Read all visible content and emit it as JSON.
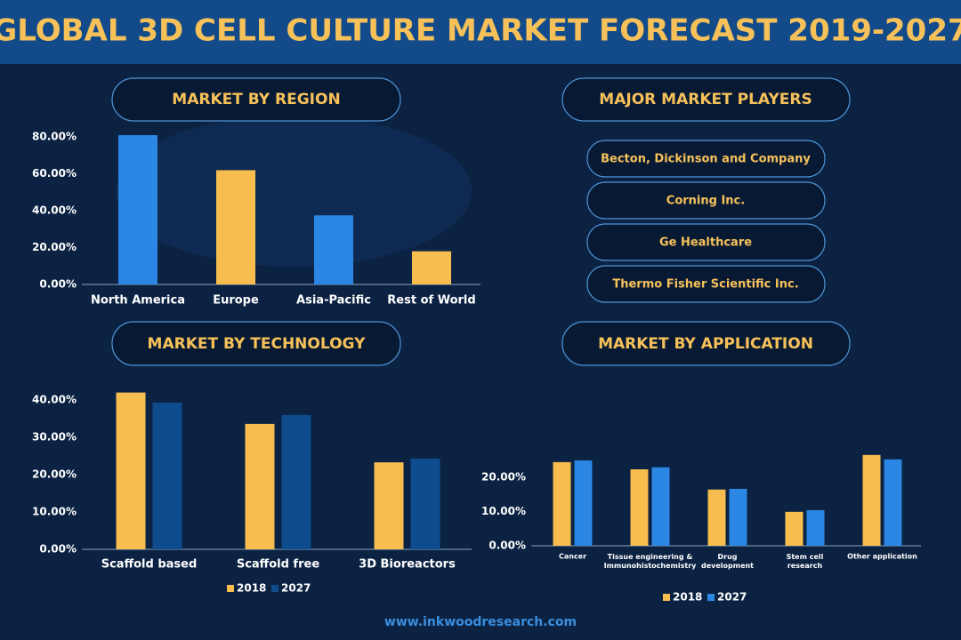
{
  "title": "GLOBAL 3D CELL CULTURE MARKET FORECAST 2019-2027",
  "chart_data": [
    {
      "type": "bar",
      "title": "MARKET BY REGION",
      "categories": [
        "North America",
        "Europe",
        "Asia-Pacific",
        "Rest of World"
      ],
      "values": [
        81,
        62,
        37.5,
        18
      ],
      "colors": [
        "#2b87e3",
        "#f7bd4f",
        "#2b87e3",
        "#f7bd4f"
      ],
      "ylim": [
        0,
        82
      ],
      "yticks": [
        {
          "value": 0,
          "label": "0.00%"
        },
        {
          "value": 20,
          "label": "20.00%"
        },
        {
          "value": 40,
          "label": "40.00%"
        },
        {
          "value": 60,
          "label": "60.00%"
        },
        {
          "value": 80,
          "label": "80.00%"
        }
      ]
    },
    {
      "type": "bar",
      "title": "MARKET BY TECHNOLOGY",
      "categories": [
        "Scaffold based",
        "Scaffold free",
        "3D Bioreactors"
      ],
      "series": [
        {
          "name": "2018",
          "color": "#f7bd4f",
          "values": [
            42,
            33.6,
            23.3
          ]
        },
        {
          "name": "2027",
          "color": "#0e4c8e",
          "values": [
            39.3,
            36,
            24.3
          ]
        }
      ],
      "ylim": [
        0,
        45
      ],
      "yticks": [
        {
          "value": 0,
          "label": "0.00%"
        },
        {
          "value": 10,
          "label": "10.00%"
        },
        {
          "value": 20,
          "label": "20.00%"
        },
        {
          "value": 30,
          "label": "30.00%"
        },
        {
          "value": 40,
          "label": "40.00%"
        }
      ]
    },
    {
      "type": "bar",
      "title": "MARKET BY APPLICATION",
      "categories": [
        "Cancer",
        "Tissue engineering &\nImmunohistochemistry",
        "Drug\ndevelopment",
        "Stem cell\nresearch",
        "Other application"
      ],
      "series": [
        {
          "name": "2018",
          "color": "#f7bd4f",
          "values": [
            24.4,
            22.3,
            16.4,
            9.9,
            26.5
          ]
        },
        {
          "name": "2027",
          "color": "#2b87e3",
          "values": [
            24.9,
            22.9,
            16.6,
            10.4,
            25.2
          ]
        }
      ],
      "ylim": [
        0,
        28
      ],
      "yticks": [
        {
          "value": 0,
          "label": "0.00%"
        },
        {
          "value": 10,
          "label": "10.00%"
        },
        {
          "value": 20,
          "label": "20.00%"
        }
      ]
    }
  ],
  "players": {
    "title": "MAJOR MARKET PLAYERS",
    "items": [
      "Becton, Dickinson and Company",
      "Corning Inc.",
      "Ge Healthcare",
      "Thermo Fisher Scientific Inc."
    ]
  },
  "footer": "www.inkwoodresearch.com"
}
